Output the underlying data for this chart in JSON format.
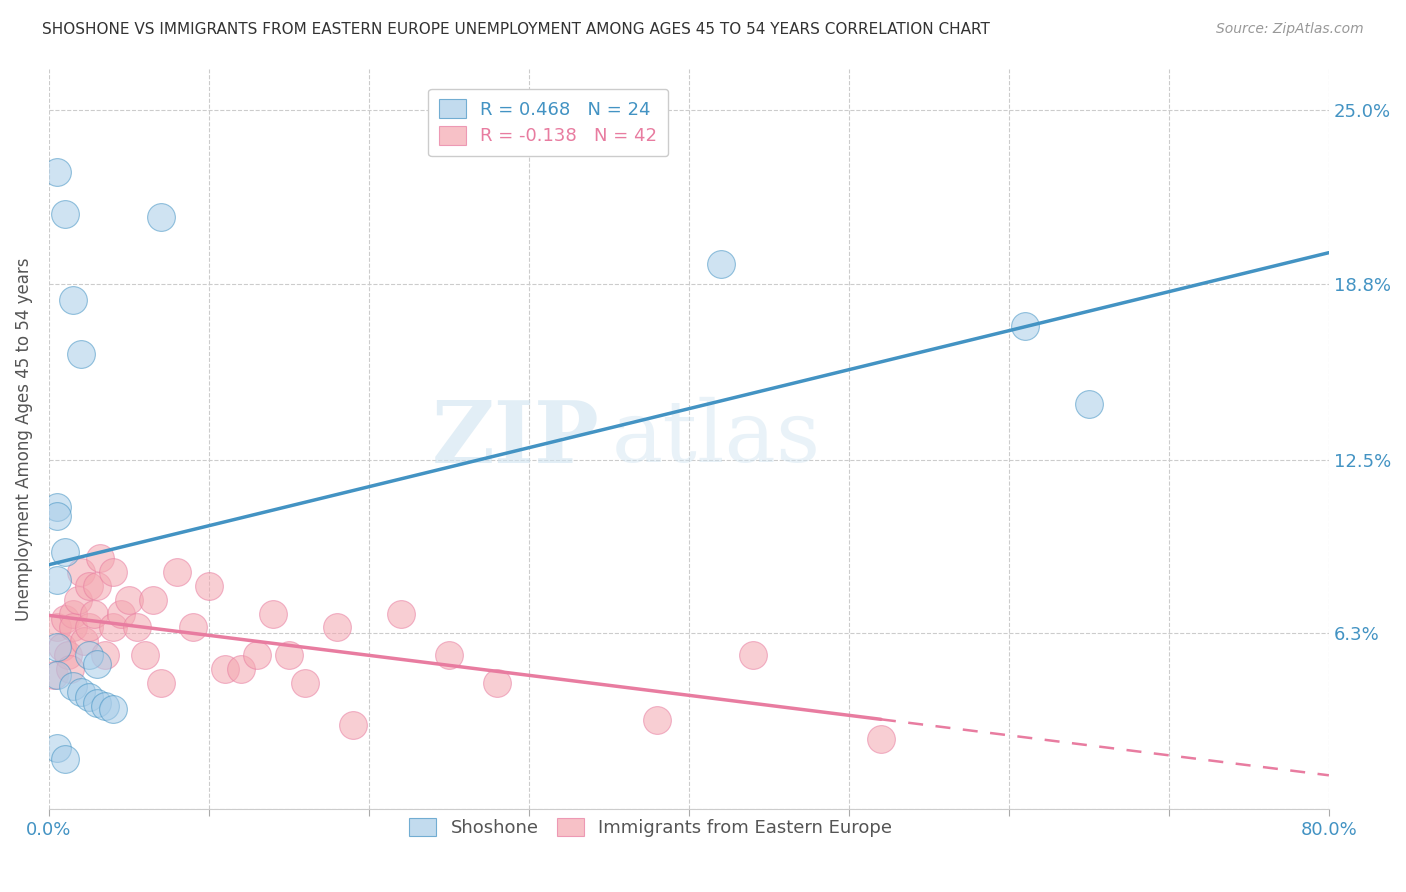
{
  "title": "SHOSHONE VS IMMIGRANTS FROM EASTERN EUROPE UNEMPLOYMENT AMONG AGES 45 TO 54 YEARS CORRELATION CHART",
  "source": "Source: ZipAtlas.com",
  "ylabel": "Unemployment Among Ages 45 to 54 years",
  "xlim": [
    0.0,
    0.8
  ],
  "ylim": [
    0.0,
    0.265
  ],
  "yticks": [
    0.0,
    0.063,
    0.125,
    0.188,
    0.25
  ],
  "ytick_labels": [
    "",
    "6.3%",
    "12.5%",
    "18.8%",
    "25.0%"
  ],
  "xticks": [
    0.0,
    0.1,
    0.2,
    0.3,
    0.4,
    0.5,
    0.6,
    0.7,
    0.8
  ],
  "shoshone_color": "#a8cce8",
  "eastern_europe_color": "#f4a7b0",
  "shoshone_line_color": "#4393c3",
  "eastern_europe_line_color": "#e87ca0",
  "right_axis_color": "#4393c3",
  "R_shoshone": 0.468,
  "N_shoshone": 24,
  "R_eastern": -0.138,
  "N_eastern": 42,
  "shoshone_scatter_x": [
    0.005,
    0.01,
    0.07,
    0.015,
    0.02,
    0.005,
    0.005,
    0.01,
    0.005,
    0.005,
    0.025,
    0.03,
    0.005,
    0.015,
    0.02,
    0.025,
    0.03,
    0.035,
    0.04,
    0.42,
    0.61,
    0.65,
    0.005,
    0.01
  ],
  "shoshone_scatter_y": [
    0.228,
    0.213,
    0.212,
    0.182,
    0.163,
    0.108,
    0.105,
    0.092,
    0.082,
    0.058,
    0.055,
    0.052,
    0.048,
    0.044,
    0.042,
    0.04,
    0.038,
    0.037,
    0.036,
    0.195,
    0.173,
    0.145,
    0.022,
    0.018
  ],
  "eastern_europe_scatter_x": [
    0.003,
    0.005,
    0.008,
    0.01,
    0.012,
    0.013,
    0.015,
    0.015,
    0.018,
    0.02,
    0.022,
    0.025,
    0.025,
    0.028,
    0.03,
    0.032,
    0.035,
    0.04,
    0.04,
    0.045,
    0.05,
    0.055,
    0.06,
    0.065,
    0.07,
    0.08,
    0.09,
    0.1,
    0.11,
    0.12,
    0.13,
    0.14,
    0.15,
    0.16,
    0.18,
    0.19,
    0.22,
    0.25,
    0.28,
    0.38,
    0.44,
    0.52
  ],
  "eastern_europe_scatter_y": [
    0.048,
    0.065,
    0.058,
    0.068,
    0.055,
    0.05,
    0.07,
    0.065,
    0.075,
    0.085,
    0.06,
    0.08,
    0.065,
    0.07,
    0.08,
    0.09,
    0.055,
    0.065,
    0.085,
    0.07,
    0.075,
    0.065,
    0.055,
    0.075,
    0.045,
    0.085,
    0.065,
    0.08,
    0.05,
    0.05,
    0.055,
    0.07,
    0.055,
    0.045,
    0.065,
    0.03,
    0.07,
    0.055,
    0.045,
    0.032,
    0.055,
    0.025
  ],
  "watermark_zip": "ZIP",
  "watermark_atlas": "atlas",
  "background_color": "#ffffff",
  "grid_color": "#cccccc",
  "legend_edge_color": "#cccccc"
}
